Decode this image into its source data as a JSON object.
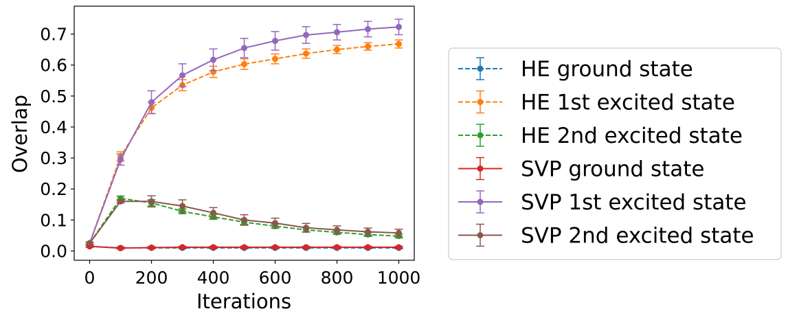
{
  "chart_data": {
    "type": "line",
    "title": "",
    "xlabel": "Iterations",
    "ylabel": "Overlap",
    "x": [
      0,
      100,
      200,
      300,
      400,
      500,
      600,
      700,
      800,
      900,
      1000
    ],
    "xlim": [
      -50,
      1050
    ],
    "ylim": [
      -0.03,
      0.79
    ],
    "xticks": [
      0,
      200,
      400,
      600,
      800,
      1000
    ],
    "xtick_labels": [
      "0",
      "200",
      "400",
      "600",
      "800",
      "1000"
    ],
    "yticks": [
      0.0,
      0.1,
      0.2,
      0.3,
      0.4,
      0.5,
      0.6,
      0.7
    ],
    "ytick_labels": [
      "0.0",
      "0.1",
      "0.2",
      "0.3",
      "0.4",
      "0.5",
      "0.6",
      "0.7"
    ],
    "grid": false,
    "legend_position": "right, outside plot",
    "series": [
      {
        "name": "HE ground state",
        "color": "#1f77b4",
        "linestyle": "dashed",
        "values": [
          0.015,
          0.01,
          0.01,
          0.01,
          0.01,
          0.01,
          0.01,
          0.01,
          0.01,
          0.01,
          0.01
        ],
        "errors": [
          0.003,
          0.003,
          0.003,
          0.003,
          0.003,
          0.003,
          0.003,
          0.003,
          0.003,
          0.003,
          0.003
        ]
      },
      {
        "name": "HE 1st excited state",
        "color": "#ff7f0e",
        "linestyle": "dashed",
        "values": [
          0.025,
          0.305,
          0.462,
          0.535,
          0.578,
          0.603,
          0.62,
          0.637,
          0.65,
          0.66,
          0.668
        ],
        "errors": [
          0.004,
          0.015,
          0.018,
          0.018,
          0.018,
          0.017,
          0.016,
          0.015,
          0.013,
          0.012,
          0.013
        ]
      },
      {
        "name": "HE 2nd excited state",
        "color": "#2ca02c",
        "linestyle": "dashed",
        "values": [
          0.025,
          0.17,
          0.155,
          0.128,
          0.11,
          0.093,
          0.08,
          0.068,
          0.06,
          0.053,
          0.048
        ],
        "errors": [
          0.003,
          0.007,
          0.01,
          0.008,
          0.008,
          0.007,
          0.007,
          0.007,
          0.006,
          0.006,
          0.006
        ]
      },
      {
        "name": "SVP ground state",
        "color": "#d62728",
        "linestyle": "solid",
        "values": [
          0.015,
          0.009,
          0.011,
          0.012,
          0.012,
          0.012,
          0.012,
          0.012,
          0.012,
          0.012,
          0.012
        ],
        "errors": [
          0.003,
          0.003,
          0.003,
          0.003,
          0.003,
          0.003,
          0.003,
          0.003,
          0.003,
          0.003,
          0.003
        ]
      },
      {
        "name": "SVP 1st excited state",
        "color": "#9467bd",
        "linestyle": "solid",
        "values": [
          0.025,
          0.295,
          0.48,
          0.567,
          0.617,
          0.655,
          0.678,
          0.697,
          0.706,
          0.716,
          0.723
        ],
        "errors": [
          0.004,
          0.018,
          0.037,
          0.037,
          0.035,
          0.031,
          0.03,
          0.027,
          0.025,
          0.025,
          0.025
        ]
      },
      {
        "name": "SVP 2nd excited state",
        "color": "#8c564b",
        "linestyle": "solid",
        "values": [
          0.025,
          0.16,
          0.16,
          0.145,
          0.123,
          0.1,
          0.09,
          0.075,
          0.068,
          0.062,
          0.058
        ],
        "errors": [
          0.003,
          0.005,
          0.018,
          0.02,
          0.017,
          0.017,
          0.016,
          0.014,
          0.013,
          0.012,
          0.012
        ]
      }
    ]
  }
}
